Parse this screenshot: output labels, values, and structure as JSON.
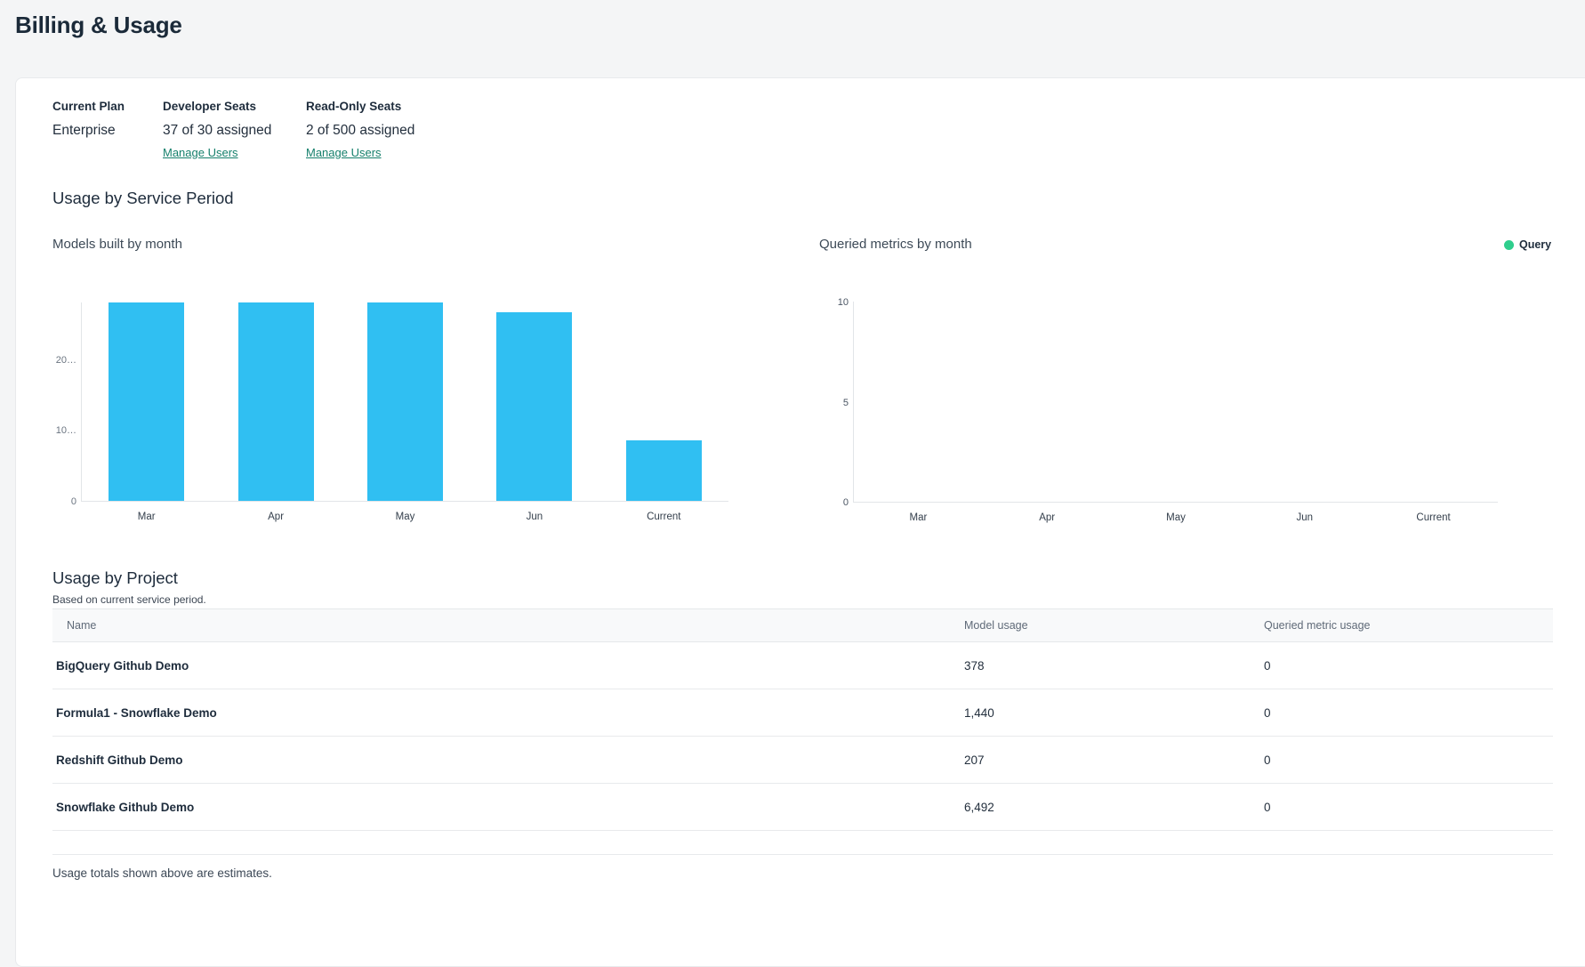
{
  "page": {
    "title": "Billing & Usage"
  },
  "plan": {
    "columns": [
      {
        "label": "Current Plan",
        "value": "Enterprise"
      },
      {
        "label": "Developer Seats",
        "value": "37 of 30 assigned",
        "link": "Manage Users"
      },
      {
        "label": "Read-Only Seats",
        "value": "2 of 500 assigned",
        "link": "Manage Users"
      }
    ]
  },
  "sections": {
    "usage_by_service_period": "Usage by Service Period"
  },
  "chart_data": [
    {
      "type": "bar",
      "title": "Models built by month",
      "categories": [
        "Mar",
        "Apr",
        "May",
        "Jun",
        "Current"
      ],
      "values": [
        28000,
        28000,
        28000,
        26600,
        8500
      ],
      "ylim": [
        0,
        28000
      ],
      "yticks": [
        {
          "value": 0,
          "label": "0"
        },
        {
          "value": 10000,
          "label": "10…"
        },
        {
          "value": 20000,
          "label": "20…"
        }
      ],
      "bar_color": "#30bff2",
      "grid": false,
      "legend": null
    },
    {
      "type": "bar",
      "title": "Queried metrics by month",
      "categories": [
        "Mar",
        "Apr",
        "May",
        "Jun",
        "Current"
      ],
      "values": [
        0,
        0,
        0,
        0,
        0
      ],
      "ylim": [
        0,
        10
      ],
      "yticks": [
        {
          "value": 0,
          "label": "0"
        },
        {
          "value": 5,
          "label": "5"
        },
        {
          "value": 10,
          "label": "10"
        }
      ],
      "bar_color": "#2fce8d",
      "grid": false,
      "legend": {
        "label": "Query",
        "color": "#2fce8d",
        "position": "top-right"
      }
    }
  ],
  "table": {
    "heading": "Usage by Project",
    "subtitle": "Based on current service period.",
    "columns": [
      "Name",
      "Model usage",
      "Queried metric usage"
    ],
    "rows": [
      {
        "name": "BigQuery Github Demo",
        "model_usage": "378",
        "queried_metric_usage": "0"
      },
      {
        "name": "Formula1 - Snowflake Demo",
        "model_usage": "1,440",
        "queried_metric_usage": "0"
      },
      {
        "name": "Redshift Github Demo",
        "model_usage": "207",
        "queried_metric_usage": "0"
      },
      {
        "name": "Snowflake Github Demo",
        "model_usage": "6,492",
        "queried_metric_usage": "0"
      }
    ]
  },
  "footer": {
    "note": "Usage totals shown above are estimates."
  },
  "colors": {
    "bar_blue": "#30bff2",
    "legend_green": "#2fce8d",
    "link_teal": "#16806c",
    "heading_navy": "#1b2a39"
  }
}
